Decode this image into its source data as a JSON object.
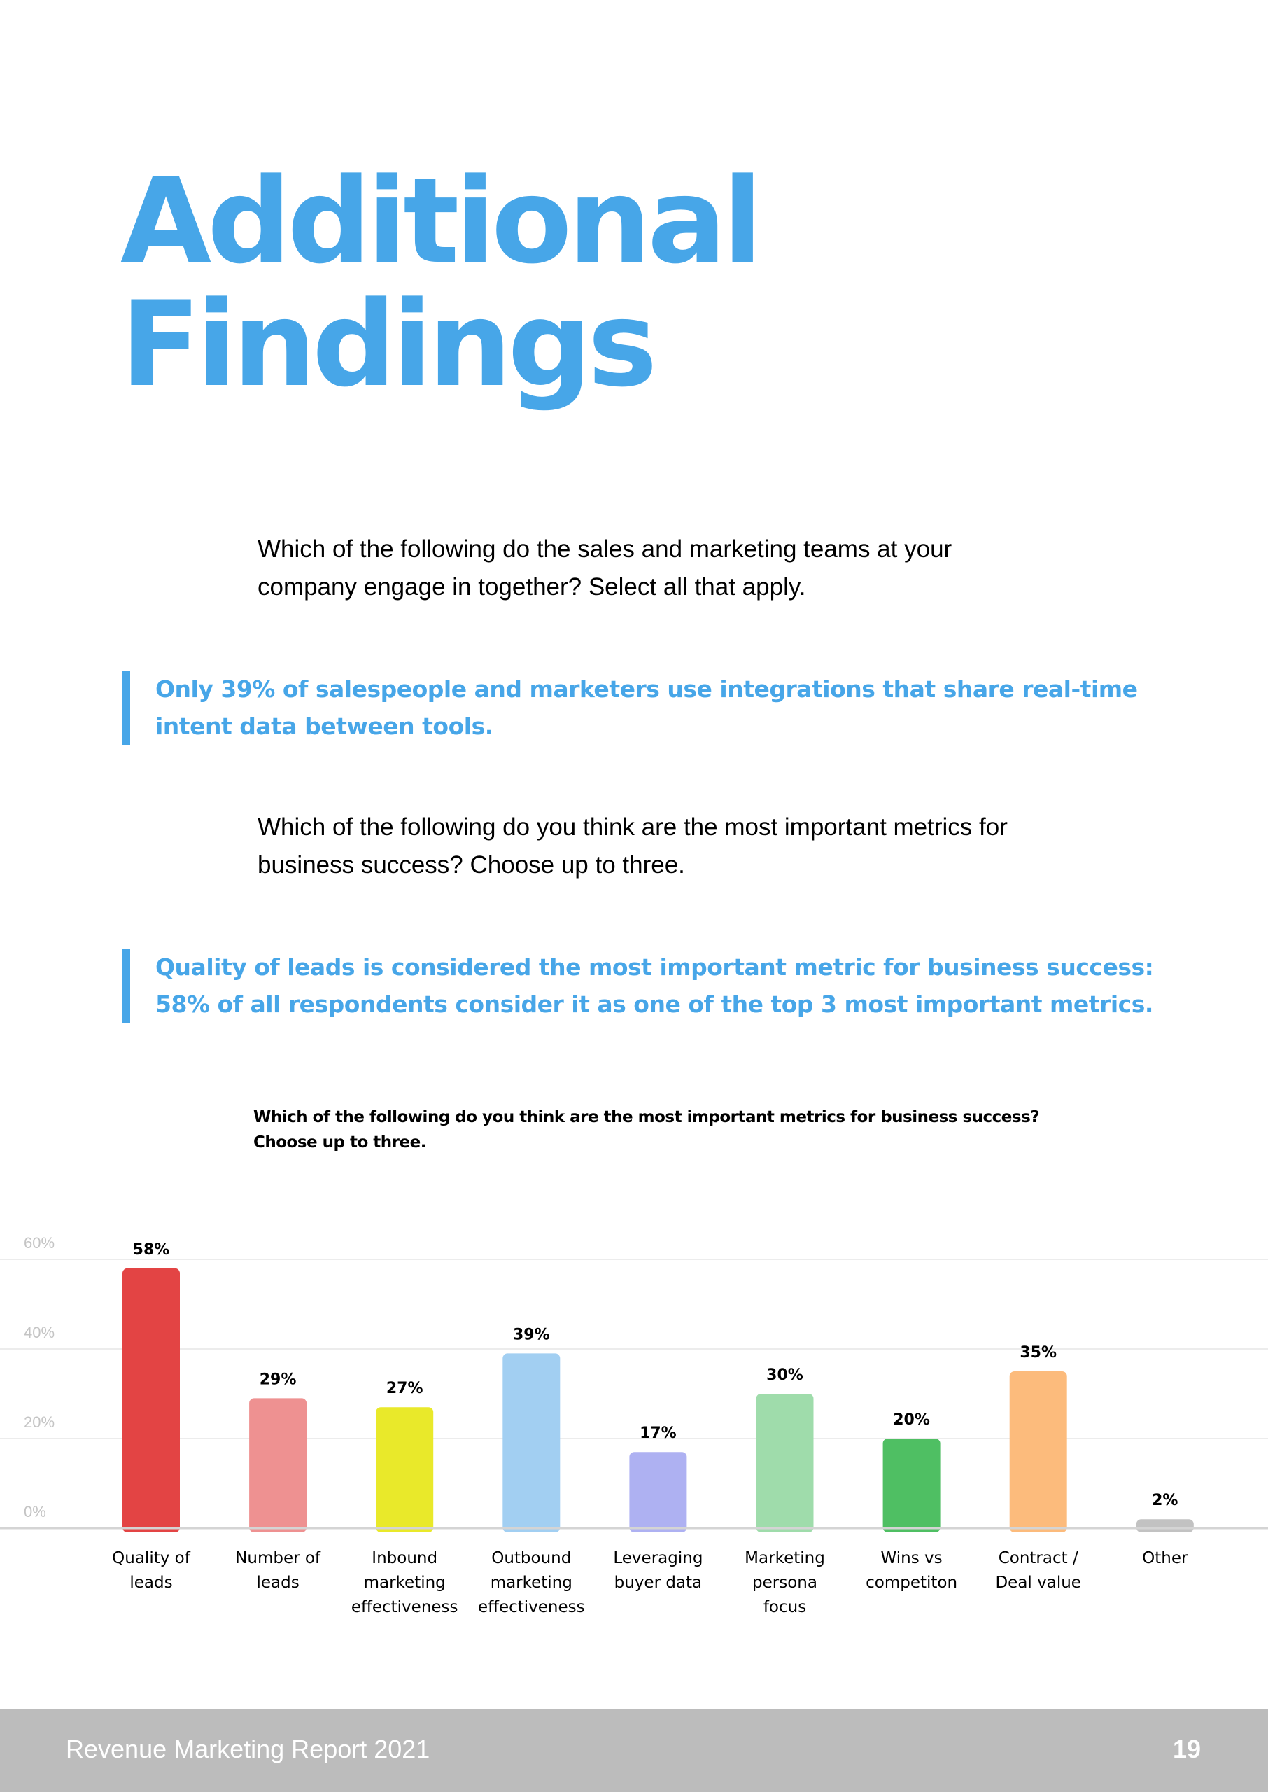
{
  "title": {
    "line1": "Additional",
    "line2": "Findings"
  },
  "question1": "Which of the following do the sales and marketing teams at your company engage in together? Select all that apply.",
  "callout1": "Only 39% of salespeople and marketers use integrations that share real-time intent data between tools.",
  "question2": "Which of the following do you think are the most important metrics for business success? Choose up to three.",
  "callout2": "Quality of leads is considered the most important metric for business success: 58% of all respondents consider it as one of the top 3 most important metrics.",
  "chart_data": {
    "type": "bar",
    "title_line1": "Which of the following do you think are the most important metrics for business success?",
    "title_line2": "Choose up to three.",
    "categories": [
      [
        "Quality of",
        "leads"
      ],
      [
        "Number of",
        "leads"
      ],
      [
        "Inbound",
        "marketing",
        "effectiveness"
      ],
      [
        "Outbound",
        "marketing",
        "effectiveness"
      ],
      [
        "Leveraging",
        "buyer data"
      ],
      [
        "Marketing",
        "persona",
        "focus"
      ],
      [
        "Wins vs",
        "competiton"
      ],
      [
        "Contract /",
        "Deal value"
      ],
      [
        "Other"
      ]
    ],
    "values": [
      58,
      29,
      27,
      39,
      17,
      30,
      20,
      35,
      2
    ],
    "value_labels": [
      "58%",
      "29%",
      "27%",
      "39%",
      "17%",
      "30%",
      "20%",
      "35%",
      "2%"
    ],
    "colors": [
      "#e34444",
      "#ee9191",
      "#e9e92a",
      "#a2cff2",
      "#aeb1f2",
      "#9fdcab",
      "#4fbf63",
      "#fcbb7c",
      "#c2c2c2"
    ],
    "ylim": [
      0,
      60
    ],
    "yticks": [
      0,
      20,
      40,
      60
    ],
    "ytick_labels": [
      "0%",
      "20%",
      "40%",
      "60%"
    ],
    "grid": true,
    "legend": "none"
  },
  "footer": {
    "title": "Revenue Marketing Report 2021",
    "page": "19"
  },
  "colors": {
    "accent": "#47a6e8",
    "footer_bg": "#bcbcbc"
  }
}
